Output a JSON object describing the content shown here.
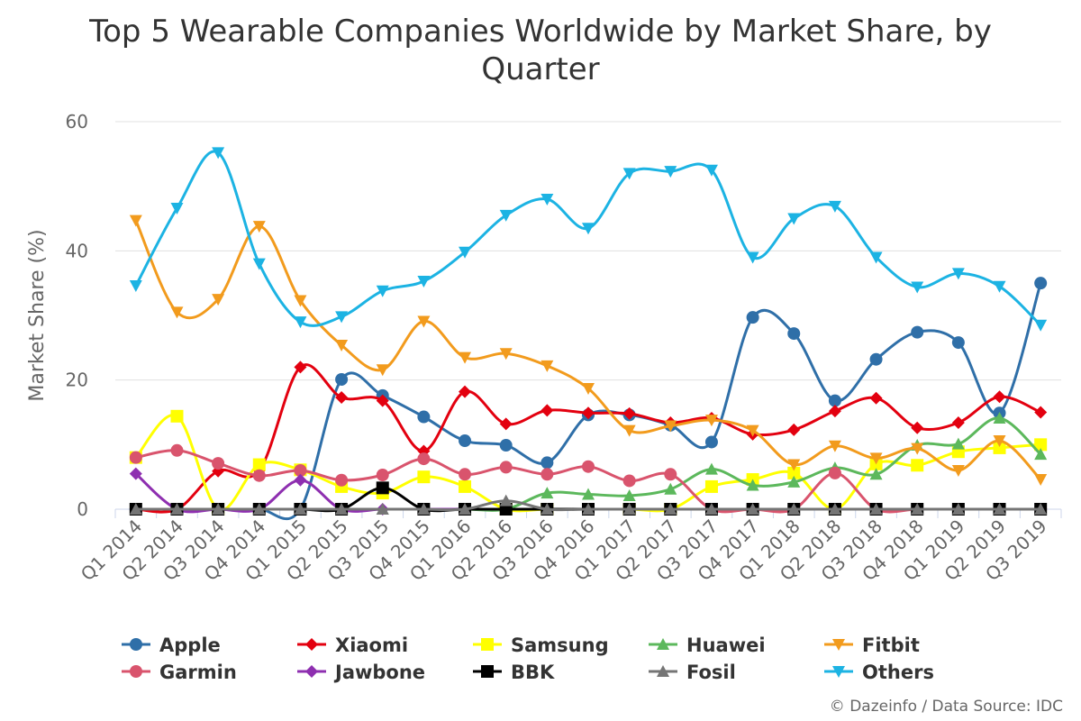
{
  "chart_data": {
    "type": "line",
    "title_line1": "Top 5 Wearable Companies Worldwide by Market Share, by",
    "title_line2": "Quarter",
    "xlabel": "",
    "ylabel": "Market Share (%)",
    "ylim": [
      0,
      60
    ],
    "yticks": [
      "0",
      "20",
      "40",
      "60"
    ],
    "grid": true,
    "legend": "bottom",
    "categories": [
      "Q1 2014",
      "Q2 2014",
      "Q3 2014",
      "Q4 2014",
      "Q1 2015",
      "Q2 2015",
      "Q3 2015",
      "Q4 2015",
      "Q1 2016",
      "Q2 2016",
      "Q3 2016",
      "Q4 2016",
      "Q1 2017",
      "Q2 2017",
      "Q3 2017",
      "Q4 2017",
      "Q1 2018",
      "Q2 2018",
      "Q3 2018",
      "Q4 2018",
      "Q1 2019",
      "Q2 2019",
      "Q3 2019"
    ],
    "series": [
      {
        "name": "Apple",
        "color": "#2f6fa8",
        "marker": "circle",
        "values": [
          0,
          0,
          0,
          0,
          0,
          20.1,
          17.6,
          14.3,
          10.6,
          9.9,
          7.2,
          14.6,
          14.6,
          13,
          10.4,
          29.7,
          27.2,
          16.8,
          23.2,
          27.4,
          25.8,
          14.9,
          35
        ]
      },
      {
        "name": "Xiaomi",
        "color": "#e3000f",
        "marker": "diamond",
        "values": [
          0,
          0,
          5.9,
          6,
          22,
          17.3,
          16.8,
          9,
          18.2,
          13.2,
          15.3,
          14.9,
          14.8,
          13.4,
          14.1,
          11.6,
          12.3,
          15.2,
          17.2,
          12.6,
          13.4,
          17.4,
          15
        ]
      },
      {
        "name": "Samsung",
        "color": "#ffff00",
        "marker": "square",
        "values": [
          8,
          14.4,
          0,
          6.9,
          6.1,
          3.5,
          2.5,
          5,
          3.5,
          0,
          0,
          0,
          0,
          0,
          3.5,
          4.6,
          5.6,
          0,
          7,
          6.8,
          8.9,
          9.5,
          10
        ]
      },
      {
        "name": "Huawei",
        "color": "#5cb85c",
        "marker": "triangle",
        "values": [
          0,
          0,
          0,
          0,
          0,
          0,
          0,
          0,
          0,
          0,
          2.5,
          2.3,
          2.1,
          3.1,
          6.2,
          3.7,
          4.2,
          6.4,
          5.4,
          9.9,
          10.1,
          14.1,
          8.5
        ]
      },
      {
        "name": "Fitbit",
        "color": "#f29b1d",
        "marker": "triangle-down",
        "values": [
          44.7,
          30.5,
          32.5,
          43.8,
          32.3,
          25.4,
          21.6,
          29.1,
          23.5,
          24.1,
          22.2,
          18.7,
          12.2,
          12.9,
          13.8,
          12.2,
          6.9,
          9.8,
          7.9,
          9.4,
          6,
          10.6,
          4.6
        ]
      },
      {
        "name": "Garmin",
        "color": "#d9546d",
        "marker": "circle",
        "values": [
          8,
          9.1,
          7.1,
          5.2,
          6,
          4.5,
          5.3,
          7.8,
          5.4,
          6.5,
          5.4,
          6.6,
          4.4,
          5.4,
          0,
          0,
          0,
          5.6,
          0,
          0,
          0,
          0,
          0
        ]
      },
      {
        "name": "Jawbone",
        "color": "#8e2fb0",
        "marker": "diamond",
        "values": [
          5.5,
          0,
          0,
          0,
          4.5,
          0,
          0,
          0,
          0,
          0,
          0,
          0,
          0,
          0,
          0,
          0,
          0,
          0,
          0,
          0,
          0,
          0,
          0
        ]
      },
      {
        "name": "BBK",
        "color": "#000000",
        "marker": "square",
        "values": [
          0,
          0,
          0,
          0,
          0,
          0,
          3.3,
          0,
          0,
          0,
          0,
          0,
          0,
          0,
          0,
          0,
          0,
          0,
          0,
          0,
          0,
          0,
          0
        ]
      },
      {
        "name": "Fosil",
        "color": "#757575",
        "marker": "triangle",
        "values": [
          0,
          0,
          0,
          0,
          0,
          0,
          0,
          0,
          0,
          1.3,
          0,
          0,
          0,
          0,
          0,
          0,
          0,
          0,
          0,
          0,
          0,
          0,
          0
        ]
      },
      {
        "name": "Others",
        "color": "#1cb3e3",
        "marker": "triangle-down",
        "values": [
          34.6,
          46.6,
          55.2,
          38,
          29,
          29.8,
          33.8,
          35.3,
          39.8,
          45.5,
          48,
          43.5,
          52,
          52.3,
          52.5,
          39,
          45,
          46.9,
          39,
          34.4,
          36.5,
          34.5,
          28.5
        ]
      }
    ]
  },
  "credit": "© Dazeinfo / Data Source: IDC"
}
